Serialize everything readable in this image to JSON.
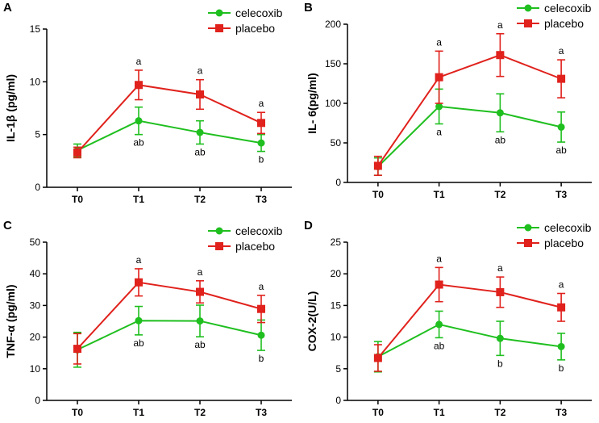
{
  "colors": {
    "celecoxib": "#1fbf1f",
    "placebo": "#e0211c",
    "axis": "#000000"
  },
  "chart_data": [
    {
      "type": "line",
      "panel": "A",
      "ylabel": "IL-1β (pg/ml)",
      "xlabel": "",
      "categories": [
        "T0",
        "T1",
        "T2",
        "T3"
      ],
      "ylim": [
        0,
        15
      ],
      "yticks": [
        0,
        5,
        10,
        15
      ],
      "legend_position": "top-right",
      "series": [
        {
          "name": "celecoxib",
          "marker": "circle",
          "values": [
            3.5,
            6.3,
            5.2,
            4.2
          ],
          "error": [
            0.6,
            1.3,
            1.1,
            0.8
          ],
          "annotations": [
            "",
            "ab",
            "ab",
            "b"
          ],
          "annotation_side": "below"
        },
        {
          "name": "placebo",
          "marker": "square",
          "values": [
            3.3,
            9.7,
            8.8,
            6.1
          ],
          "error": [
            0.5,
            1.4,
            1.4,
            1.0
          ],
          "annotations": [
            "",
            "a",
            "a",
            "a"
          ],
          "annotation_side": "above"
        }
      ]
    },
    {
      "type": "line",
      "panel": "B",
      "ylabel": "IL- 6(pg/ml)",
      "xlabel": "",
      "categories": [
        "T0",
        "T1",
        "T2",
        "T3"
      ],
      "ylim": [
        0,
        200
      ],
      "yticks": [
        0,
        50,
        100,
        150,
        200
      ],
      "legend_position": "top-right",
      "series": [
        {
          "name": "celecoxib",
          "marker": "circle",
          "values": [
            20,
            96,
            88,
            70
          ],
          "error": [
            11,
            22,
            24,
            19
          ],
          "annotations": [
            "",
            "a",
            "ab",
            "ab"
          ],
          "annotation_side": "below"
        },
        {
          "name": "placebo",
          "marker": "square",
          "values": [
            21,
            133,
            161,
            131
          ],
          "error": [
            12,
            33,
            27,
            24
          ],
          "annotations": [
            "",
            "a",
            "a",
            "a"
          ],
          "annotation_side": "above"
        }
      ]
    },
    {
      "type": "line",
      "panel": "C",
      "ylabel": "TNF-α (pg/ml)",
      "xlabel": "",
      "categories": [
        "T0",
        "T1",
        "T2",
        "T3"
      ],
      "ylim": [
        0,
        50
      ],
      "yticks": [
        0,
        10,
        20,
        30,
        40,
        50
      ],
      "legend_position": "top-right",
      "series": [
        {
          "name": "celecoxib",
          "marker": "circle",
          "values": [
            16,
            25.2,
            25.1,
            20.6
          ],
          "error": [
            5.5,
            4.5,
            5.0,
            4.8
          ],
          "annotations": [
            "",
            "ab",
            "ab",
            "b"
          ],
          "annotation_side": "below"
        },
        {
          "name": "placebo",
          "marker": "square",
          "values": [
            16.3,
            37.3,
            34.3,
            28.9
          ],
          "error": [
            4.8,
            4.3,
            3.5,
            4.3
          ],
          "annotations": [
            "",
            "a",
            "a",
            "a"
          ],
          "annotation_side": "above"
        }
      ]
    },
    {
      "type": "line",
      "panel": "D",
      "ylabel": "COX-2(U/L)",
      "xlabel": "",
      "categories": [
        "T0",
        "T1",
        "T2",
        "T3"
      ],
      "ylim": [
        0,
        25
      ],
      "yticks": [
        0,
        5,
        10,
        15,
        20,
        25
      ],
      "legend_position": "top-right",
      "series": [
        {
          "name": "celecoxib",
          "marker": "circle",
          "values": [
            6.9,
            12.0,
            9.8,
            8.5
          ],
          "error": [
            2.4,
            2.1,
            2.7,
            2.1
          ],
          "annotations": [
            "",
            "ab",
            "b",
            "b"
          ],
          "annotation_side": "below"
        },
        {
          "name": "placebo",
          "marker": "square",
          "values": [
            6.7,
            18.3,
            17.1,
            14.7
          ],
          "error": [
            2.1,
            2.7,
            2.4,
            2.2
          ],
          "annotations": [
            "",
            "a",
            "a",
            "a"
          ],
          "annotation_side": "above"
        }
      ]
    }
  ]
}
